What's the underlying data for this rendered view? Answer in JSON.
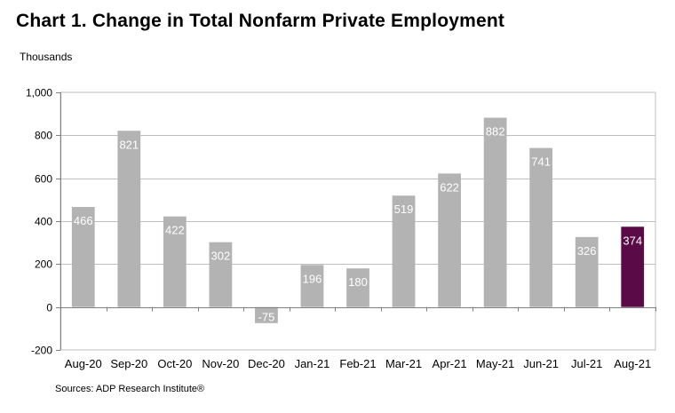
{
  "header": {
    "title": "Chart 1. Change in Total Nonfarm Private Employment",
    "units": "Thousands"
  },
  "footer": {
    "source": "Sources: ADP Research Institute®"
  },
  "colors": {
    "bar": "#b3b3b3",
    "highlight": "#5a0a46",
    "grid": "#bfbfbf",
    "axis": "#808080",
    "label": "#ffffff"
  },
  "chart_data": {
    "type": "bar",
    "title": "Chart 1. Change in Total Nonfarm Private Employment",
    "ylabel": "Thousands",
    "xlabel": "",
    "categories": [
      "Aug-20",
      "Sep-20",
      "Oct-20",
      "Nov-20",
      "Dec-20",
      "Jan-21",
      "Feb-21",
      "Mar-21",
      "Apr-21",
      "May-21",
      "Jun-21",
      "Jul-21",
      "Aug-21"
    ],
    "values": [
      466,
      821,
      422,
      302,
      -75,
      196,
      180,
      519,
      622,
      882,
      741,
      326,
      374
    ],
    "highlight_category": "Aug-21",
    "ylim": [
      -200,
      1000
    ],
    "yticks": [
      -200,
      0,
      200,
      400,
      600,
      800,
      1000
    ],
    "ytick_labels": [
      "-200",
      "0",
      "200",
      "400",
      "600",
      "800",
      "1,000"
    ],
    "grid": true,
    "legend": "none",
    "data_labels": true
  }
}
